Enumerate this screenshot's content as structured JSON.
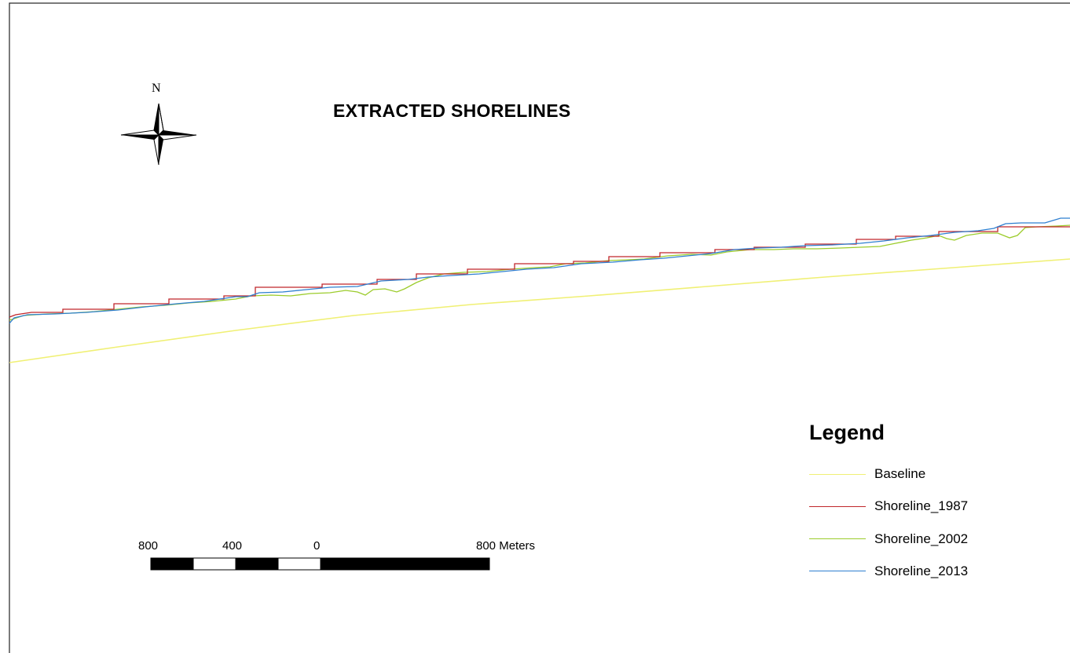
{
  "map": {
    "title": "EXTRACTED SHORELINES",
    "north_arrow": {
      "label": "N",
      "icon": "north-arrow-icon"
    }
  },
  "legend": {
    "title": "Legend",
    "items": [
      {
        "label": "Baseline",
        "color": "#f0f075"
      },
      {
        "label": "Shoreline_1987",
        "color": "#c0262b"
      },
      {
        "label": "Shoreline_2002",
        "color": "#9ccc2c"
      },
      {
        "label": "Shoreline_2013",
        "color": "#2e7fd0"
      }
    ]
  },
  "scale_bar": {
    "labels": [
      "800",
      "400",
      "0",
      "800 Meters"
    ]
  }
}
